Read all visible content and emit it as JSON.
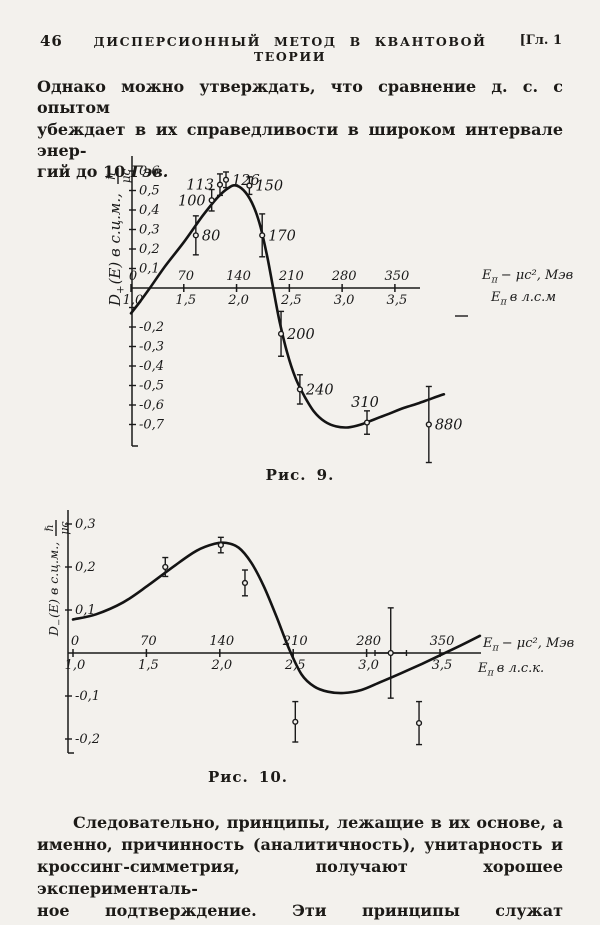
{
  "header": {
    "page_number": "46",
    "title": "ДИСПЕРСИОННЫЙ МЕТОД В КВАНТОВОЙ ТЕОРИИ",
    "chapter": "[Гл. 1"
  },
  "paragraphs": {
    "top": {
      "line1": "Однако можно утверждать, что сравнение д. с. с опытом",
      "line2": "убеждает в их справедливости в широком интервале энер-",
      "line3_plain": "гий до 10",
      "line3_italic": "Гэв."
    },
    "bottom": {
      "line1": "Следовательно, принципы, лежащие в их основе, а",
      "line2": "именно, причинность (аналитичность), унитарность и",
      "line3": "кроссинг-симметрия, получают хорошее эксперименталь-",
      "line4": "ное подтверждение. Эти принципы служат фундаментом"
    }
  },
  "figures": {
    "fig9_caption": "Рис. 9.",
    "fig10_caption": "Рис. 10."
  },
  "chart_data": [
    {
      "type": "line",
      "figure": "Рис. 9.",
      "ylabel": {
        "base": "D",
        "sub": "+",
        "mid": "(E) в с.ц.м.,",
        "frac_num": "ℏ",
        "frac_den": "μc"
      },
      "xlabel_primary": {
        "base": "E",
        "sub": "π",
        "rest": "− μc², Мэв"
      },
      "xlabel_secondary": {
        "base": "E",
        "sub": "π",
        "rest": "в л.с.м"
      },
      "xlim": [
        0,
        420
      ],
      "ylim": [
        -0.8,
        0.65
      ],
      "grid": false,
      "x_ticks": [
        {
          "mev": 0,
          "label": "0",
          "label2": "1,0"
        },
        {
          "mev": 70,
          "label": "70",
          "label2": "1,5"
        },
        {
          "mev": 140,
          "label": "140",
          "label2": "2,0"
        },
        {
          "mev": 210,
          "label": "210",
          "label2": "2,5"
        },
        {
          "mev": 280,
          "label": "280",
          "label2": "3,0"
        },
        {
          "mev": 350,
          "label": "350",
          "label2": "3,5"
        }
      ],
      "y_ticks": [
        {
          "v": 0.6,
          "label": "0,6"
        },
        {
          "v": 0.5,
          "label": "0,5"
        },
        {
          "v": 0.4,
          "label": "0,4"
        },
        {
          "v": 0.3,
          "label": "0,3"
        },
        {
          "v": 0.2,
          "label": "0,2"
        },
        {
          "v": 0.1,
          "label": "0,1"
        },
        {
          "v": -0.1,
          "label": ""
        },
        {
          "v": -0.2,
          "label": "-0,2"
        },
        {
          "v": -0.3,
          "label": "-0,3"
        },
        {
          "v": -0.4,
          "label": "-0,4"
        },
        {
          "v": -0.5,
          "label": "-0,5"
        },
        {
          "v": -0.6,
          "label": "-0,6"
        },
        {
          "v": -0.7,
          "label": "-0,7"
        }
      ],
      "curve": [
        [
          0,
          -0.13
        ],
        [
          12,
          -0.07
        ],
        [
          25,
          0.0
        ],
        [
          45,
          0.11
        ],
        [
          70,
          0.235
        ],
        [
          95,
          0.37
        ],
        [
          115,
          0.465
        ],
        [
          130,
          0.515
        ],
        [
          140,
          0.525
        ],
        [
          152,
          0.49
        ],
        [
          163,
          0.415
        ],
        [
          172,
          0.31
        ],
        [
          181,
          0.155
        ],
        [
          189,
          -0.01
        ],
        [
          197,
          -0.17
        ],
        [
          207,
          -0.33
        ],
        [
          218,
          -0.46
        ],
        [
          230,
          -0.555
        ],
        [
          243,
          -0.635
        ],
        [
          257,
          -0.685
        ],
        [
          272,
          -0.71
        ],
        [
          288,
          -0.715
        ],
        [
          305,
          -0.7
        ],
        [
          322,
          -0.675
        ],
        [
          342,
          -0.645
        ],
        [
          362,
          -0.615
        ],
        [
          382,
          -0.59
        ],
        [
          400,
          -0.565
        ],
        [
          415,
          -0.545
        ]
      ],
      "points": [
        {
          "label": "80",
          "x": 86,
          "y": 0.27,
          "err": 0.1,
          "side": "right"
        },
        {
          "label": "100",
          "x": 107,
          "y": 0.45,
          "err": 0.055,
          "side": "left"
        },
        {
          "label": "113",
          "x": 118,
          "y": 0.53,
          "err": 0.055,
          "side": "left"
        },
        {
          "label": "126",
          "x": 126,
          "y": 0.555,
          "err": 0.04,
          "side": "right"
        },
        {
          "label": "150",
          "x": 157,
          "y": 0.525,
          "err": 0.045,
          "side": "right"
        },
        {
          "label": "170",
          "x": 174,
          "y": 0.27,
          "err": 0.11,
          "side": "right"
        },
        {
          "label": "200",
          "x": 199,
          "y": -0.235,
          "err": 0.115,
          "side": "right"
        },
        {
          "label": "240",
          "x": 224,
          "y": -0.52,
          "err": 0.075,
          "side": "right"
        },
        {
          "label": "310",
          "x": 313,
          "y": -0.69,
          "err": 0.06,
          "side": "above"
        },
        {
          "label": "880",
          "x": 395,
          "y": -0.7,
          "err": 0.195,
          "side": "right"
        }
      ]
    },
    {
      "type": "line",
      "figure": "Рис. 10.",
      "ylabel": {
        "base": "D",
        "sub": "−",
        "mid": "(E) в с.ц.м.,",
        "frac_num": "ℏ",
        "frac_den": "μc"
      },
      "xlabel_primary": {
        "base": "E",
        "sub": "π",
        "rest": "− μc², Мэв"
      },
      "xlabel_secondary": {
        "base": "E",
        "sub": "π",
        "rest": "в л.с.к."
      },
      "xlim": [
        0,
        400
      ],
      "ylim": [
        -0.23,
        0.33
      ],
      "grid": false,
      "x_ticks": [
        {
          "mev": 0,
          "label": "0",
          "label2": "1,0"
        },
        {
          "mev": 70,
          "label": "70",
          "label2": "1,5"
        },
        {
          "mev": 140,
          "label": "140",
          "label2": "2,0"
        },
        {
          "mev": 210,
          "label": "210",
          "label2": "2,5"
        },
        {
          "mev": 280,
          "label": "280",
          "label2": "3,0"
        },
        {
          "mev": 350,
          "label": "350",
          "label2": "3,5"
        }
      ],
      "y_ticks": [
        {
          "v": 0.3,
          "label": "0,3"
        },
        {
          "v": 0.2,
          "label": "0,2"
        },
        {
          "v": 0.1,
          "label": "0,1"
        },
        {
          "v": -0.1,
          "label": "-0,1"
        },
        {
          "v": -0.2,
          "label": "-0,2"
        }
      ],
      "curve": [
        [
          0,
          0.078
        ],
        [
          22,
          0.09
        ],
        [
          48,
          0.118
        ],
        [
          72,
          0.158
        ],
        [
          98,
          0.205
        ],
        [
          118,
          0.238
        ],
        [
          135,
          0.254
        ],
        [
          146,
          0.256
        ],
        [
          158,
          0.245
        ],
        [
          170,
          0.21
        ],
        [
          182,
          0.155
        ],
        [
          194,
          0.085
        ],
        [
          206,
          0.01
        ],
        [
          218,
          -0.05
        ],
        [
          230,
          -0.078
        ],
        [
          243,
          -0.09
        ],
        [
          258,
          -0.093
        ],
        [
          275,
          -0.086
        ],
        [
          293,
          -0.068
        ],
        [
          313,
          -0.047
        ],
        [
          333,
          -0.025
        ],
        [
          352,
          -0.003
        ],
        [
          370,
          0.018
        ],
        [
          388,
          0.04
        ]
      ],
      "points": [
        {
          "x": 88,
          "y": 0.2,
          "err": 0.022
        },
        {
          "x": 141,
          "y": 0.251,
          "err": 0.018
        },
        {
          "x": 164,
          "y": 0.163,
          "err": 0.03
        },
        {
          "x": 212,
          "y": -0.16,
          "err": 0.047
        },
        {
          "x": 303,
          "y": 0.0,
          "err": 0.105,
          "xerr": 15
        },
        {
          "x": 330,
          "y": -0.163,
          "err": 0.05
        }
      ]
    }
  ]
}
